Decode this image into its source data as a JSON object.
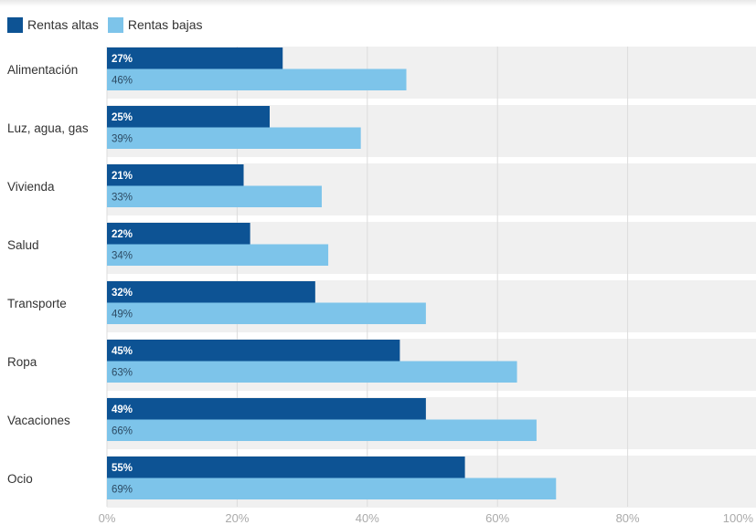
{
  "legend": {
    "items": [
      {
        "label": "Rentas altas",
        "color": "#0d5394"
      },
      {
        "label": "Rentas bajas",
        "color": "#7dc4ea"
      }
    ]
  },
  "chart_data": {
    "type": "bar",
    "orientation": "horizontal",
    "categories": [
      "Alimentación",
      "Luz, agua, gas",
      "Vivienda",
      "Salud",
      "Transporte",
      "Ropa",
      "Vacaciones",
      "Ocio"
    ],
    "series": [
      {
        "name": "Rentas altas",
        "color": "#0d5394",
        "values": [
          27,
          25,
          21,
          22,
          32,
          45,
          49,
          55
        ]
      },
      {
        "name": "Rentas bajas",
        "color": "#7dc4ea",
        "values": [
          46,
          39,
          33,
          34,
          49,
          63,
          66,
          69
        ]
      }
    ],
    "value_suffix": "%",
    "xlim": [
      0,
      100
    ],
    "ticks": [
      0,
      20,
      40,
      60,
      80,
      100
    ],
    "tick_labels": [
      "0%",
      "20%",
      "40%",
      "60%",
      "80%",
      "100%"
    ],
    "grid": true,
    "legend_position": "top-left"
  }
}
